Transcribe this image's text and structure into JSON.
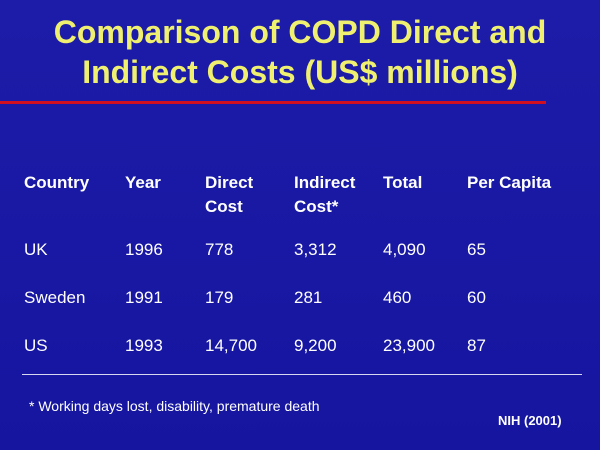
{
  "title": {
    "line1": "Comparison of COPD Direct and",
    "line2": "Indirect Costs (US$ millions)"
  },
  "table": {
    "headers": [
      {
        "line1": "Country",
        "line2": ""
      },
      {
        "line1": "Year",
        "line2": ""
      },
      {
        "line1": "Direct",
        "line2": "Cost"
      },
      {
        "line1": "Indirect",
        "line2": "Cost*"
      },
      {
        "line1": "Total",
        "line2": ""
      },
      {
        "line1": "Per Capita",
        "line2": ""
      }
    ],
    "rows": [
      [
        "UK",
        "1996",
        "778",
        "3,312",
        "4,090",
        "65"
      ],
      [
        "Sweden",
        "1991",
        "179",
        "281",
        "460",
        "60"
      ],
      [
        "US",
        "1993",
        "14,700",
        "9,200",
        "23,900",
        "87"
      ]
    ]
  },
  "footnote": "* Working days lost, disability, premature death",
  "source": "NIH (2001)",
  "colors": {
    "background": "#1a1aa0",
    "title": "#f0f070",
    "rule": "#d01020",
    "text": "#ffffff"
  }
}
